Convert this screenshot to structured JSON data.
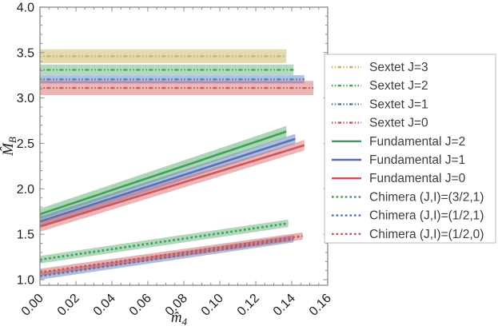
{
  "figure": {
    "background": "#ffffff",
    "frame_color": "#8a8a8a",
    "tick_label_color": "#1c1c1c",
    "legend_text_color": "#3d3d3d",
    "legend_border_color": "#bbbbbb"
  },
  "chart_data": {
    "type": "line",
    "title": "",
    "xlabel": {
      "main": "m̂",
      "sub": "4"
    },
    "ylabel": {
      "main": "M̂",
      "sub": "B"
    },
    "xlim": [
      0,
      0.16
    ],
    "ylim": [
      0.94,
      4.0
    ],
    "grid": false,
    "x_ticks": {
      "values": [
        0.0,
        0.02,
        0.04,
        0.06,
        0.08,
        0.1,
        0.12,
        0.14,
        0.16
      ],
      "labels": [
        "0.00",
        "0.02",
        "0.04",
        "0.06",
        "0.08",
        "0.10",
        "0.12",
        "0.14",
        "0.16"
      ],
      "minor_step": 0.005
    },
    "y_ticks": {
      "values": [
        1.0,
        1.5,
        2.0,
        2.5,
        3.0,
        3.5,
        4.0
      ],
      "labels": [
        "1.0",
        "1.5",
        "2.0",
        "2.5",
        "3.0",
        "3.5",
        "4.0"
      ],
      "minor_step": 0.1
    },
    "series": [
      {
        "name": "Sextet J=3",
        "style": "dashdot",
        "color": "#c8b35f",
        "band_opacity": 0.5,
        "band_halfwidth": 0.075,
        "x": [
          0,
          0.137
        ],
        "y": [
          3.46,
          3.46
        ]
      },
      {
        "name": "Sextet J=2",
        "style": "dashdot",
        "color": "#44a05c",
        "band_opacity": 0.4,
        "band_halfwidth": 0.058,
        "x": [
          0,
          0.141
        ],
        "y": [
          3.31,
          3.31
        ]
      },
      {
        "name": "Sextet J=1",
        "style": "dashdot",
        "color": "#5273b4",
        "band_opacity": 0.45,
        "band_halfwidth": 0.045,
        "x": [
          0,
          0.147
        ],
        "y": [
          3.205,
          3.205
        ]
      },
      {
        "name": "Sextet J=0",
        "style": "dashdot",
        "color": "#cc5252",
        "band_opacity": 0.42,
        "band_halfwidth": 0.078,
        "x": [
          0,
          0.152
        ],
        "y": [
          3.11,
          3.11
        ]
      },
      {
        "name": "Fundamental J=2",
        "style": "solid",
        "color": "#3b9e53",
        "band_opacity": 0.42,
        "band_halfwidth": 0.062,
        "x": [
          0,
          0.137
        ],
        "y": [
          1.72,
          2.63
        ]
      },
      {
        "name": "Fundamental J=1",
        "style": "solid",
        "color": "#4f6fb4",
        "band_opacity": 0.45,
        "band_halfwidth": 0.055,
        "x": [
          0,
          0.142
        ],
        "y": [
          1.64,
          2.55
        ]
      },
      {
        "name": "Fundamental J=0",
        "style": "solid",
        "color": "#cf5156",
        "band_opacity": 0.42,
        "band_halfwidth": 0.058,
        "x": [
          0,
          0.147
        ],
        "y": [
          1.585,
          2.48
        ]
      },
      {
        "name": "Chimera (J,I)=(3/2,1)",
        "style": "dotted",
        "color": "#3b9e53",
        "band_opacity": 0.4,
        "band_halfwidth": 0.042,
        "x": [
          0,
          0.138
        ],
        "y": [
          1.22,
          1.62
        ]
      },
      {
        "name": "Chimera (J,I)=(1/2,1)",
        "style": "dotted",
        "color": "#4f6fb4",
        "band_opacity": 0.45,
        "band_halfwidth": 0.04,
        "x": [
          0,
          0.141
        ],
        "y": [
          1.04,
          1.45
        ]
      },
      {
        "name": "Chimera (J,I)=(1/2,0)",
        "style": "dotted",
        "color": "#cc4f4f",
        "band_opacity": 0.45,
        "band_halfwidth": 0.04,
        "x": [
          0,
          0.146
        ],
        "y": [
          1.08,
          1.48
        ]
      }
    ],
    "legend": {
      "position": "right",
      "framed": true
    }
  }
}
